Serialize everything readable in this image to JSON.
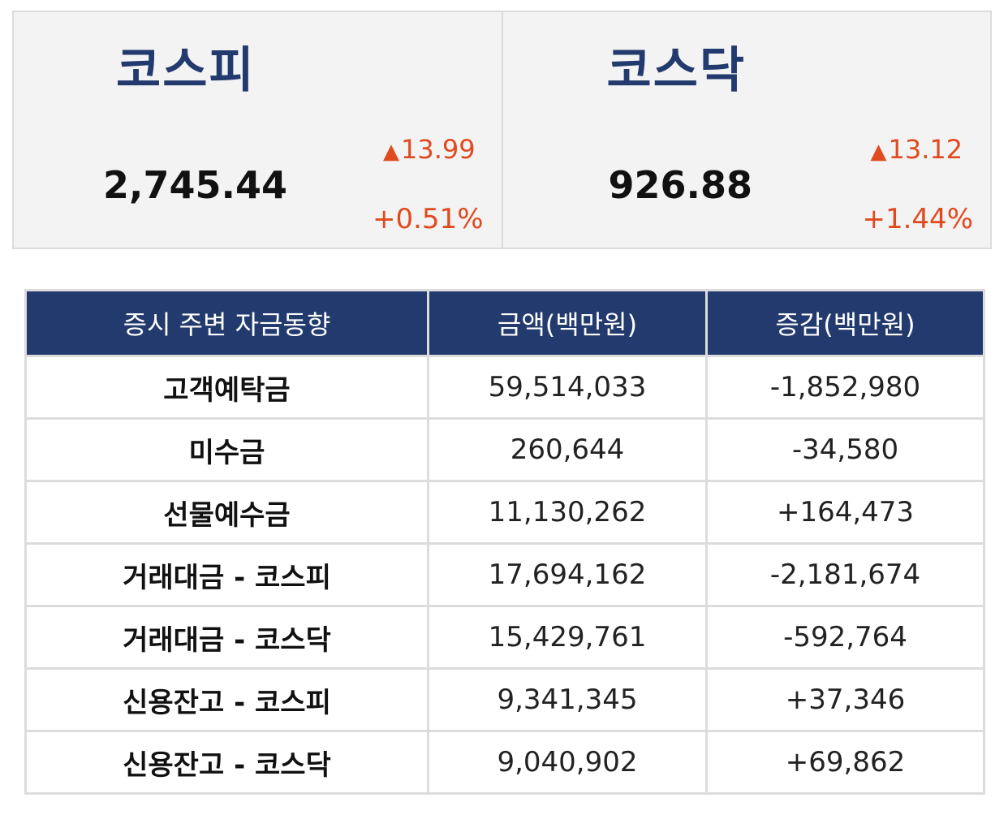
{
  "indices": {
    "kospi": {
      "name": "코스피",
      "value": "2,745.44",
      "change": "13.99",
      "rate": "+0.51%"
    },
    "kosdaq": {
      "name": "코스닥",
      "value": "926.88",
      "change": "13.12",
      "rate": "+1.44%"
    },
    "up_arrow": "▲"
  },
  "table": {
    "headers": [
      "증시 주변 자금동향",
      "금액(백만원)",
      "증감(백만원)"
    ],
    "rows": [
      {
        "item": "고객예탁금",
        "amount": "59,514,033",
        "change": "-1,852,980",
        "direction": "neg"
      },
      {
        "item": "미수금",
        "amount": "260,644",
        "change": "-34,580",
        "direction": "neg"
      },
      {
        "item": "선물예수금",
        "amount": "11,130,262",
        "change": "+164,473",
        "direction": "pos"
      },
      {
        "item": "거래대금 - 코스피",
        "amount": "17,694,162",
        "change": "-2,181,674",
        "direction": "neg"
      },
      {
        "item": "거래대금 - 코스닥",
        "amount": "15,429,761",
        "change": "-592,764",
        "direction": "neg"
      },
      {
        "item": "신용잔고 - 코스피",
        "amount": "9,341,345",
        "change": "+37,346",
        "direction": "pos"
      },
      {
        "item": "신용잔고 - 코스닥",
        "amount": "9,040,902",
        "change": "+69,862",
        "direction": "pos"
      }
    ]
  },
  "colors": {
    "navy": "#233a6e",
    "up_red": "#e04a1f",
    "down_blue": "#1d2bc4",
    "panel_bg": "#f3f3f3",
    "border": "#dcdcdc"
  }
}
